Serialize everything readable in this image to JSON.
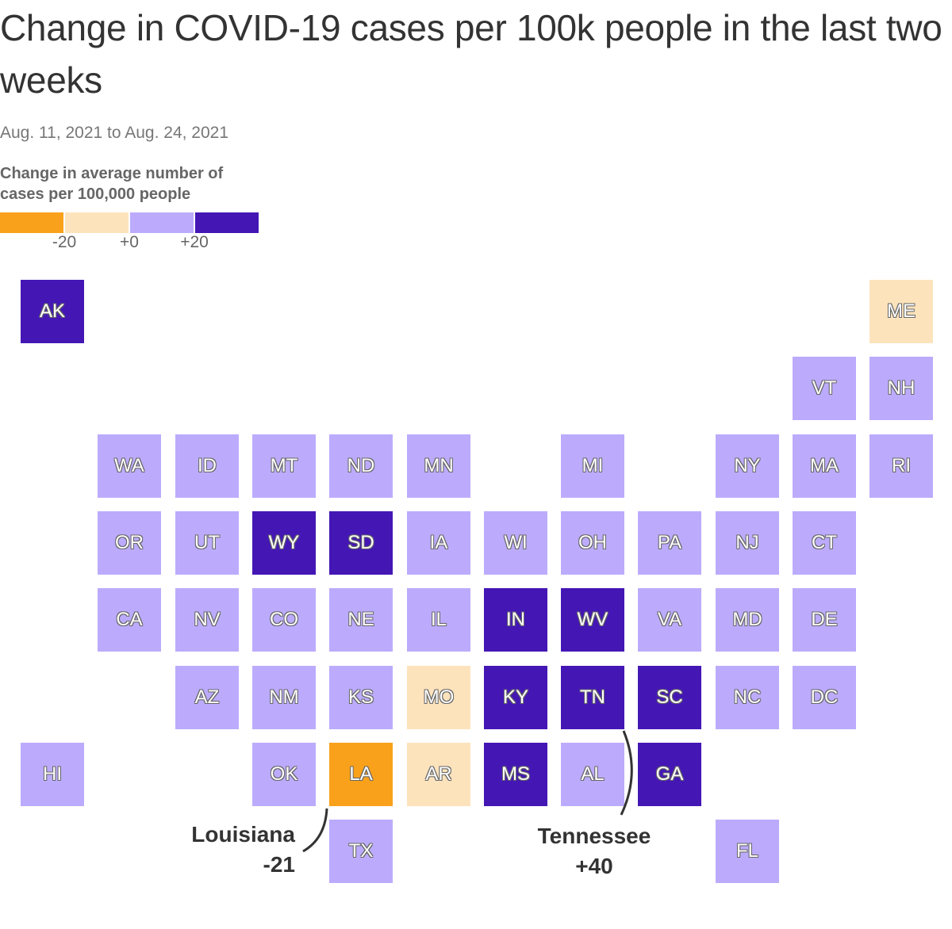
{
  "title": "Change in COVID-19 cases per 100k people in the last two weeks",
  "subtitle": "Aug. 11, 2021 to Aug. 24, 2021",
  "legend": {
    "title": "Change in average number of cases per 100,000 people",
    "bins": [
      {
        "range": "< -20",
        "color": "#F9A11B"
      },
      {
        "range": "-20 to 0",
        "color": "#FDE3BC"
      },
      {
        "range": "0 to +20",
        "color": "#BCABFC"
      },
      {
        "range": "> +20",
        "color": "#4417B5"
      }
    ],
    "ticks": [
      "-20",
      "+0",
      "+20"
    ]
  },
  "chart_data": {
    "type": "tile-map",
    "grid_columns": 12,
    "grid_rows": 8,
    "states": [
      {
        "abbr": "AK",
        "col": 0,
        "row": 0,
        "bin": 3
      },
      {
        "abbr": "ME",
        "col": 11,
        "row": 0,
        "bin": 1
      },
      {
        "abbr": "VT",
        "col": 10,
        "row": 1,
        "bin": 2
      },
      {
        "abbr": "NH",
        "col": 11,
        "row": 1,
        "bin": 2
      },
      {
        "abbr": "WA",
        "col": 1,
        "row": 2,
        "bin": 2
      },
      {
        "abbr": "ID",
        "col": 2,
        "row": 2,
        "bin": 2
      },
      {
        "abbr": "MT",
        "col": 3,
        "row": 2,
        "bin": 2
      },
      {
        "abbr": "ND",
        "col": 4,
        "row": 2,
        "bin": 2
      },
      {
        "abbr": "MN",
        "col": 5,
        "row": 2,
        "bin": 2
      },
      {
        "abbr": "MI",
        "col": 7,
        "row": 2,
        "bin": 2
      },
      {
        "abbr": "NY",
        "col": 9,
        "row": 2,
        "bin": 2
      },
      {
        "abbr": "MA",
        "col": 10,
        "row": 2,
        "bin": 2
      },
      {
        "abbr": "RI",
        "col": 11,
        "row": 2,
        "bin": 2
      },
      {
        "abbr": "OR",
        "col": 1,
        "row": 3,
        "bin": 2
      },
      {
        "abbr": "UT",
        "col": 2,
        "row": 3,
        "bin": 2
      },
      {
        "abbr": "WY",
        "col": 3,
        "row": 3,
        "bin": 3
      },
      {
        "abbr": "SD",
        "col": 4,
        "row": 3,
        "bin": 3
      },
      {
        "abbr": "IA",
        "col": 5,
        "row": 3,
        "bin": 2
      },
      {
        "abbr": "WI",
        "col": 6,
        "row": 3,
        "bin": 2
      },
      {
        "abbr": "OH",
        "col": 7,
        "row": 3,
        "bin": 2
      },
      {
        "abbr": "PA",
        "col": 8,
        "row": 3,
        "bin": 2
      },
      {
        "abbr": "NJ",
        "col": 9,
        "row": 3,
        "bin": 2
      },
      {
        "abbr": "CT",
        "col": 10,
        "row": 3,
        "bin": 2
      },
      {
        "abbr": "CA",
        "col": 1,
        "row": 4,
        "bin": 2
      },
      {
        "abbr": "NV",
        "col": 2,
        "row": 4,
        "bin": 2
      },
      {
        "abbr": "CO",
        "col": 3,
        "row": 4,
        "bin": 2
      },
      {
        "abbr": "NE",
        "col": 4,
        "row": 4,
        "bin": 2
      },
      {
        "abbr": "IL",
        "col": 5,
        "row": 4,
        "bin": 2
      },
      {
        "abbr": "IN",
        "col": 6,
        "row": 4,
        "bin": 3
      },
      {
        "abbr": "WV",
        "col": 7,
        "row": 4,
        "bin": 3
      },
      {
        "abbr": "VA",
        "col": 8,
        "row": 4,
        "bin": 2
      },
      {
        "abbr": "MD",
        "col": 9,
        "row": 4,
        "bin": 2
      },
      {
        "abbr": "DE",
        "col": 10,
        "row": 4,
        "bin": 2
      },
      {
        "abbr": "AZ",
        "col": 2,
        "row": 5,
        "bin": 2
      },
      {
        "abbr": "NM",
        "col": 3,
        "row": 5,
        "bin": 2
      },
      {
        "abbr": "KS",
        "col": 4,
        "row": 5,
        "bin": 2
      },
      {
        "abbr": "MO",
        "col": 5,
        "row": 5,
        "bin": 1
      },
      {
        "abbr": "KY",
        "col": 6,
        "row": 5,
        "bin": 3
      },
      {
        "abbr": "TN",
        "col": 7,
        "row": 5,
        "bin": 3
      },
      {
        "abbr": "SC",
        "col": 8,
        "row": 5,
        "bin": 3
      },
      {
        "abbr": "NC",
        "col": 9,
        "row": 5,
        "bin": 2
      },
      {
        "abbr": "DC",
        "col": 10,
        "row": 5,
        "bin": 2
      },
      {
        "abbr": "HI",
        "col": 0,
        "row": 6,
        "bin": 2
      },
      {
        "abbr": "OK",
        "col": 3,
        "row": 6,
        "bin": 2
      },
      {
        "abbr": "LA",
        "col": 4,
        "row": 6,
        "bin": 0
      },
      {
        "abbr": "AR",
        "col": 5,
        "row": 6,
        "bin": 1
      },
      {
        "abbr": "MS",
        "col": 6,
        "row": 6,
        "bin": 3
      },
      {
        "abbr": "AL",
        "col": 7,
        "row": 6,
        "bin": 2
      },
      {
        "abbr": "GA",
        "col": 8,
        "row": 6,
        "bin": 3
      },
      {
        "abbr": "TX",
        "col": 4,
        "row": 7,
        "bin": 2
      },
      {
        "abbr": "FL",
        "col": 9,
        "row": 7,
        "bin": 2
      }
    ],
    "annotations": [
      {
        "state": "LA",
        "name": "Louisiana",
        "value": "-21"
      },
      {
        "state": "TN",
        "name": "Tennessee",
        "value": "+40"
      }
    ]
  }
}
